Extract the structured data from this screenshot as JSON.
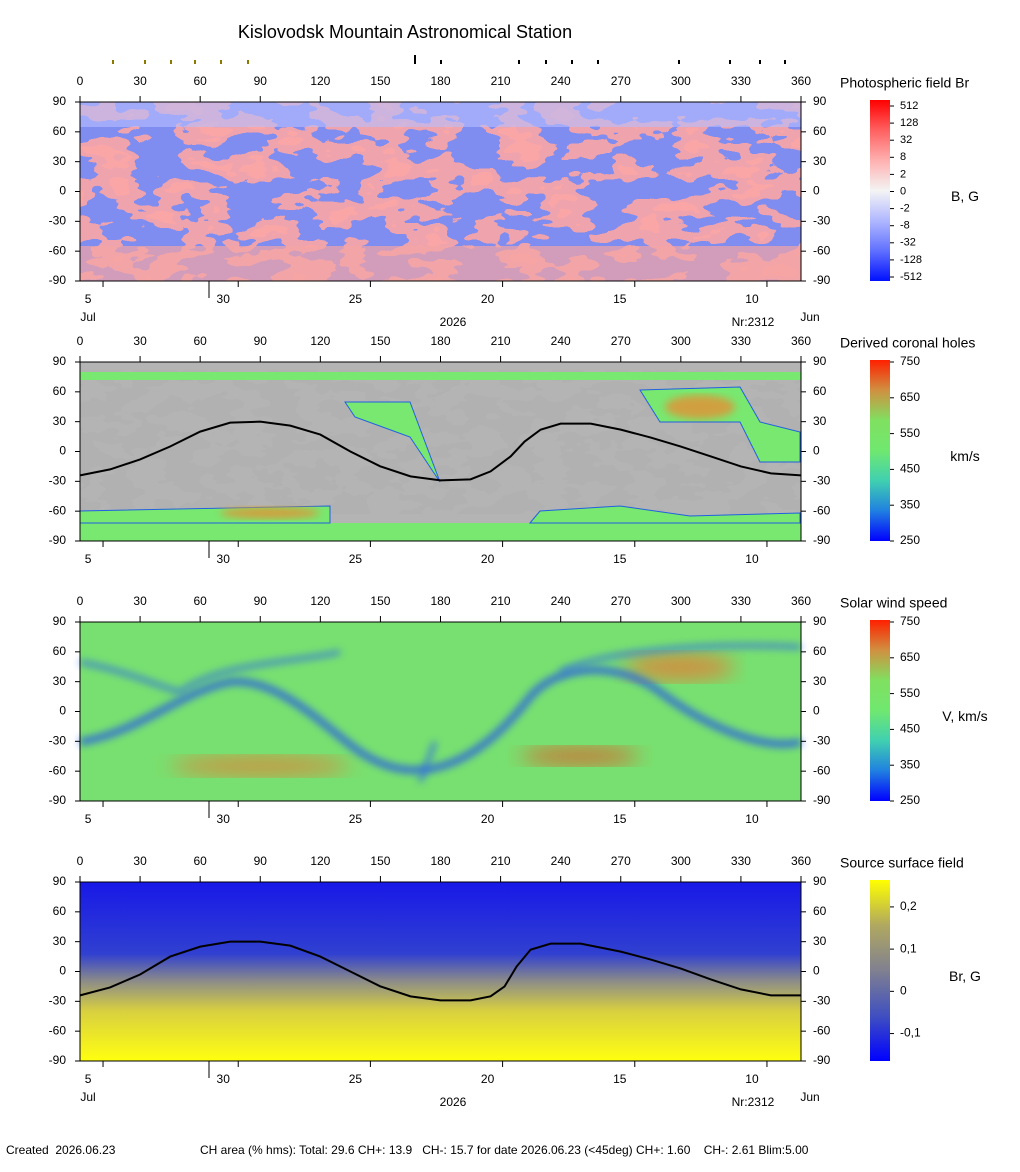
{
  "title": "Kislovodsk Mountain Astronomical Station",
  "footer": {
    "created": "Created  2026.06.23",
    "stats": "CH area (% hms): Total: 29.6 CH+: 13.9   CH-: 15.7 for date 2026.06.23 (<45deg) CH+: 1.60    CH-: 2.61 Blim:5.00"
  },
  "chart_data": [
    {
      "type": "heatmap",
      "title": "Photospheric field Br",
      "colorbar_label": "B, G",
      "xlim": [
        0,
        360
      ],
      "ylim": [
        -90,
        90
      ],
      "xticks": [
        0,
        30,
        60,
        90,
        120,
        150,
        180,
        210,
        240,
        270,
        300,
        330,
        360
      ],
      "yticks": [
        90,
        60,
        30,
        0,
        -30,
        -60,
        -90
      ],
      "date_ticks": [
        {
          "value": 11.5,
          "label": "5"
        },
        {
          "value": 79,
          "label": "30"
        },
        {
          "value": 145,
          "label": "25"
        },
        {
          "value": 211,
          "label": "20"
        },
        {
          "value": 277,
          "label": "15"
        },
        {
          "value": 343,
          "label": "10"
        }
      ],
      "month_left": "Jul",
      "year": "2026",
      "rotation": "Nr:2312",
      "month_right": "Jun",
      "cscale": "discrete",
      "cticks": [
        512,
        128,
        32,
        8,
        2,
        0,
        -2,
        -8,
        -32,
        -128,
        -512
      ],
      "colors": [
        "#ff0000",
        "#ff6060",
        "#ffb0b0",
        "#f4f4f4",
        "#b0b8ff",
        "#6070ff",
        "#0010ff"
      ]
    },
    {
      "type": "heatmap",
      "title": "Derived coronal holes",
      "colorbar_label": "km/s",
      "xlim": [
        0,
        360
      ],
      "ylim": [
        -90,
        90
      ],
      "xticks": [
        0,
        30,
        60,
        90,
        120,
        150,
        180,
        210,
        240,
        270,
        300,
        330,
        360
      ],
      "yticks": [
        90,
        60,
        30,
        0,
        -30,
        -60,
        -90
      ],
      "date_ticks": [
        {
          "value": 11.5,
          "label": "5"
        },
        {
          "value": 79,
          "label": "30"
        },
        {
          "value": 145,
          "label": "25"
        },
        {
          "value": 211,
          "label": "20"
        },
        {
          "value": 277,
          "label": "15"
        },
        {
          "value": 343,
          "label": "10"
        }
      ],
      "cscale": "linear",
      "clim": [
        250,
        750
      ],
      "cticks": [
        750,
        650,
        550,
        450,
        350,
        250
      ],
      "colors": [
        "#0000ff",
        "#2080e0",
        "#40d0b0",
        "#70e870",
        "#80e060",
        "#d09040",
        "#ff2000"
      ],
      "series": [
        {
          "color": "#000000",
          "x": [
            0,
            15,
            30,
            45,
            60,
            75,
            90,
            105,
            120,
            135,
            150,
            165,
            180,
            195,
            205,
            215,
            222,
            230,
            240,
            255,
            270,
            285,
            300,
            315,
            330,
            345,
            360
          ],
          "values": [
            -24,
            -18,
            -8,
            5,
            20,
            29,
            30,
            26,
            17,
            0,
            -15,
            -25,
            -29,
            -28,
            -20,
            -5,
            10,
            22,
            28,
            28,
            22,
            14,
            5,
            -5,
            -15,
            -22,
            -24
          ]
        }
      ]
    },
    {
      "type": "heatmap",
      "title": "Solar wind speed",
      "colorbar_label": "V, km/s",
      "xlim": [
        0,
        360
      ],
      "ylim": [
        -90,
        90
      ],
      "xticks": [
        0,
        30,
        60,
        90,
        120,
        150,
        180,
        210,
        240,
        270,
        300,
        330,
        360
      ],
      "yticks": [
        90,
        60,
        30,
        0,
        -30,
        -60,
        -90
      ],
      "date_ticks": [
        {
          "value": 11.5,
          "label": "5"
        },
        {
          "value": 79,
          "label": "30"
        },
        {
          "value": 145,
          "label": "25"
        },
        {
          "value": 211,
          "label": "20"
        },
        {
          "value": 277,
          "label": "15"
        },
        {
          "value": 343,
          "label": "10"
        }
      ],
      "cscale": "linear",
      "clim": [
        250,
        750
      ],
      "cticks": [
        750,
        650,
        550,
        450,
        350,
        250
      ],
      "colors": [
        "#0000ff",
        "#2080e0",
        "#40d0b0",
        "#70e870",
        "#80e060",
        "#d09040",
        "#ff2000"
      ]
    },
    {
      "type": "heatmap",
      "title": "Source surface field",
      "colorbar_label": "Br, G",
      "xlim": [
        0,
        360
      ],
      "ylim": [
        -90,
        90
      ],
      "xticks": [
        0,
        30,
        60,
        90,
        120,
        150,
        180,
        210,
        240,
        270,
        300,
        330,
        360
      ],
      "yticks": [
        90,
        60,
        30,
        0,
        -30,
        -60,
        -90
      ],
      "date_ticks": [
        {
          "value": 11.5,
          "label": "5"
        },
        {
          "value": 79,
          "label": "30"
        },
        {
          "value": 145,
          "label": "25"
        },
        {
          "value": 211,
          "label": "20"
        },
        {
          "value": 277,
          "label": "15"
        },
        {
          "value": 343,
          "label": "10"
        }
      ],
      "month_left": "Jul",
      "year": "2026",
      "rotation": "Nr:2312",
      "month_right": "Jun",
      "cscale": "linear",
      "clim": [
        -0.165,
        0.259
      ],
      "cticks": [
        {
          "value": 0.2,
          "label": "0,2"
        },
        {
          "value": 0.1,
          "label": "0,1"
        },
        0,
        {
          "value": -0.1,
          "label": "-0,1"
        }
      ],
      "colors": [
        "#0000ff",
        "#4050c0",
        "#808090",
        "#b0a860",
        "#ffff00"
      ],
      "series": [
        {
          "color": "#000000",
          "x": [
            0,
            15,
            30,
            45,
            60,
            75,
            90,
            105,
            120,
            135,
            150,
            165,
            180,
            195,
            205,
            212,
            218,
            225,
            235,
            250,
            270,
            285,
            300,
            315,
            330,
            345,
            360
          ],
          "values": [
            -24,
            -16,
            -3,
            15,
            25,
            30,
            30,
            26,
            15,
            0,
            -15,
            -25,
            -29,
            -29,
            -25,
            -15,
            5,
            22,
            28,
            28,
            20,
            12,
            3,
            -8,
            -18,
            -24,
            -24
          ]
        }
      ]
    }
  ]
}
